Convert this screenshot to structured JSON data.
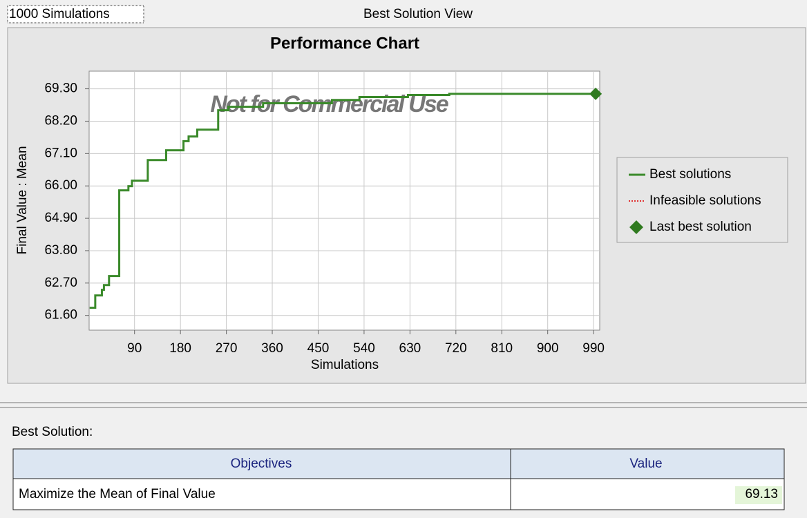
{
  "header": {
    "dropdown": "1000 Simulations",
    "view_title": "Best Solution View"
  },
  "chart_data": {
    "type": "line",
    "title": "Performance Chart",
    "watermark": "Not for Commercial Use",
    "x_label": "Simulations",
    "y_label": "Final Value : Mean",
    "xlim": [
      1,
      1002
    ],
    "xticks": [
      90,
      180,
      270,
      360,
      450,
      540,
      630,
      720,
      810,
      900,
      990
    ],
    "ylim": [
      61.1,
      69.9
    ],
    "yticks": [
      {
        "value": 61.6,
        "label": "61.60"
      },
      {
        "value": 62.7,
        "label": "62.70"
      },
      {
        "value": 63.8,
        "label": "63.80"
      },
      {
        "value": 64.9,
        "label": "64.90"
      },
      {
        "value": 66,
        "label": "66.00"
      },
      {
        "value": 67.1,
        "label": "67.10"
      },
      {
        "value": 68.2,
        "label": "68.20"
      },
      {
        "value": 69.3,
        "label": "69.30"
      }
    ],
    "grid": true,
    "series": [
      {
        "name": "Best solutions",
        "color": "#3a8a2a",
        "line_style": "solid",
        "x": [
          2,
          13,
          13,
          26,
          26,
          30,
          30,
          40,
          40,
          60,
          60,
          78,
          78,
          85,
          85,
          116,
          116,
          152,
          152,
          186,
          186,
          196,
          196,
          213,
          213,
          254,
          254,
          274,
          274,
          342,
          342,
          477,
          477,
          531,
          531,
          626,
          626,
          707,
          707,
          1000
        ],
        "values": [
          61.86,
          61.86,
          62.28,
          62.28,
          62.47,
          62.47,
          62.63,
          62.63,
          62.94,
          62.94,
          65.85,
          65.85,
          65.99,
          65.99,
          66.18,
          66.18,
          66.88,
          66.88,
          67.21,
          67.21,
          67.52,
          67.52,
          67.68,
          67.68,
          67.91,
          67.91,
          68.57,
          68.57,
          68.69,
          68.69,
          68.81,
          68.81,
          68.92,
          68.92,
          69.02,
          69.02,
          69.09,
          69.09,
          69.13,
          69.13
        ]
      },
      {
        "name": "Infeasible solutions",
        "color": "#e03030",
        "line_style": "dotted",
        "x": [],
        "values": []
      },
      {
        "name": "Last best solution",
        "color": "#2f7a1f",
        "line_style": "diamond",
        "x": [
          994
        ],
        "values": [
          69.13
        ]
      }
    ]
  },
  "best_solution": {
    "label": "Best Solution:",
    "table": {
      "columns": [
        "Objectives",
        "Value"
      ],
      "rows": [
        [
          "Maximize the Mean of Final Value",
          "69.13"
        ]
      ]
    }
  }
}
